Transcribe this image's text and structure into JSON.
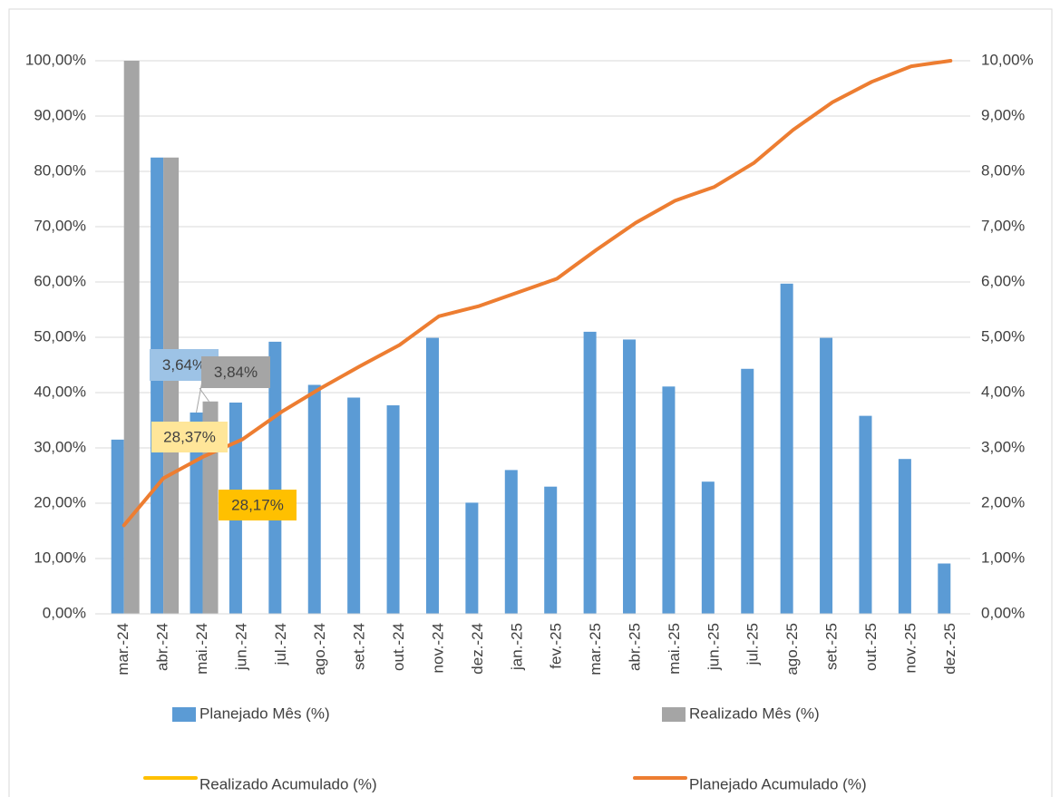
{
  "chart_data": {
    "type": "bar",
    "categories": [
      "mar.-24",
      "abr.-24",
      "mai.-24",
      "jun.-24",
      "jul.-24",
      "ago.-24",
      "set.-24",
      "out.-24",
      "nov.-24",
      "dez.-24",
      "jan.-25",
      "fev.-25",
      "mar.-25",
      "abr.-25",
      "mai.-25",
      "jun.-25",
      "jul.-25",
      "ago.-25",
      "set.-25",
      "out.-25",
      "nov.-25",
      "dez.-25"
    ],
    "series": [
      {
        "name": "Planejado Mês (%)",
        "type": "bar",
        "axis": "y2",
        "color": "#5b9bd5",
        "values": [
          3.15,
          8.25,
          3.64,
          3.82,
          4.92,
          4.14,
          3.91,
          3.77,
          4.99,
          2.01,
          2.6,
          2.3,
          5.1,
          4.96,
          4.11,
          2.39,
          4.43,
          5.97,
          4.99,
          3.58,
          2.8,
          0.91
        ],
        "value_labels": [
          null,
          null,
          "3,64%",
          null,
          null,
          null,
          null,
          null,
          null,
          null,
          null,
          null,
          null,
          null,
          null,
          null,
          null,
          null,
          null,
          null,
          null,
          null
        ]
      },
      {
        "name": "Realizado Mês    (%)",
        "type": "bar",
        "axis": "y2",
        "color": "#a5a5a5",
        "values": [
          10.0,
          8.25,
          3.84,
          null,
          null,
          null,
          null,
          null,
          null,
          null,
          null,
          null,
          null,
          null,
          null,
          null,
          null,
          null,
          null,
          null,
          null,
          null
        ],
        "value_labels": [
          null,
          null,
          "3,84%",
          null,
          null,
          null,
          null,
          null,
          null,
          null,
          null,
          null,
          null,
          null,
          null,
          null,
          null,
          null,
          null,
          null,
          null,
          null
        ]
      },
      {
        "name": "Realizado Acumulado (%)",
        "type": "line",
        "color": "#ffc000",
        "values": [
          null,
          null,
          28.17,
          null,
          null,
          null,
          null,
          null,
          null,
          null,
          null,
          null,
          null,
          null,
          null,
          null,
          null,
          null,
          null,
          null,
          null,
          null
        ],
        "value_labels": [
          null,
          null,
          "28,17%",
          null,
          null,
          null,
          null,
          null,
          null,
          null,
          null,
          null,
          null,
          null,
          null,
          null,
          null,
          null,
          null,
          null,
          null,
          null
        ]
      },
      {
        "name": "Planejado Acumulado (%)",
        "type": "line",
        "color": "#ed7d31",
        "values": [
          16,
          24.5,
          28.37,
          31.5,
          36.5,
          40.8,
          44.8,
          48.6,
          53.8,
          55.6,
          58.1,
          60.6,
          65.8,
          70.7,
          74.7,
          77.2,
          81.5,
          87.5,
          92.5,
          96.2,
          99,
          100
        ],
        "value_labels": [
          null,
          null,
          "28,37%",
          null,
          null,
          null,
          null,
          null,
          null,
          null,
          null,
          null,
          null,
          null,
          null,
          null,
          null,
          null,
          null,
          null,
          null,
          null
        ]
      }
    ],
    "ylim": [
      0,
      100
    ],
    "yticks": [
      {
        "value": 0,
        "label": "0,00%"
      },
      {
        "value": 10,
        "label": "10,00%"
      },
      {
        "value": 20,
        "label": "20,00%"
      },
      {
        "value": 30,
        "label": "30,00%"
      },
      {
        "value": 40,
        "label": "40,00%"
      },
      {
        "value": 50,
        "label": "50,00%"
      },
      {
        "value": 60,
        "label": "60,00%"
      },
      {
        "value": 70,
        "label": "70,00%"
      },
      {
        "value": 80,
        "label": "80,00%"
      },
      {
        "value": 90,
        "label": "90,00%"
      },
      {
        "value": 100,
        "label": "100,00%"
      }
    ],
    "y2lim": [
      0,
      10
    ],
    "y2ticks": [
      {
        "value": 0,
        "label": "0,00%"
      },
      {
        "value": 1,
        "label": "1,00%"
      },
      {
        "value": 2,
        "label": "2,00%"
      },
      {
        "value": 3,
        "label": "3,00%"
      },
      {
        "value": 4,
        "label": "4,00%"
      },
      {
        "value": 5,
        "label": "5,00%"
      },
      {
        "value": 6,
        "label": "6,00%"
      },
      {
        "value": 7,
        "label": "7,00%"
      },
      {
        "value": 8,
        "label": "8,00%"
      },
      {
        "value": 9,
        "label": "9,00%"
      },
      {
        "value": 10,
        "label": "10,00%"
      }
    ],
    "grid": true,
    "legend": "bottom"
  }
}
